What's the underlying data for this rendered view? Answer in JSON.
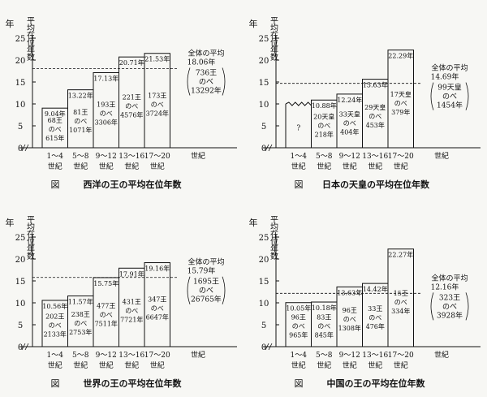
{
  "ylabel": "年",
  "ylabel_title": "平均在位年数",
  "xlabel": "世紀",
  "overall_label": "全体の平均",
  "caption_prefix": "図",
  "chart_data": [
    {
      "type": "bar",
      "title": "西洋の王の平均在位年数",
      "categories": [
        "1～4 世紀",
        "5～8 世紀",
        "9～12 世紀",
        "13～16 世紀",
        "17～20 世紀"
      ],
      "values": [
        9.04,
        13.22,
        17.13,
        20.71,
        21.53
      ],
      "value_labels": [
        "9.04年",
        "13.22年",
        "17.13年",
        "20.71年",
        "21.53年"
      ],
      "inner_top": [
        "68王",
        "81王",
        "193王",
        "221王",
        "173王"
      ],
      "inner_bottom": [
        "615年",
        "1071年",
        "3306年",
        "4576年",
        "3724年"
      ],
      "noinfo": [
        false,
        false,
        false,
        false,
        false
      ],
      "average": 18.06,
      "avg_lines": [
        "全体の平均",
        "18.06年",
        "736王",
        "のべ",
        "13292年"
      ],
      "yticks": [
        0,
        5,
        10,
        15,
        20,
        25
      ],
      "ylim": [
        0,
        25
      ]
    },
    {
      "type": "bar",
      "title": "日本の天皇の平均在位年数",
      "categories": [
        "1～4 世紀",
        "5～8 世紀",
        "9～12 世紀",
        "13～16 世紀",
        "17～20 世紀"
      ],
      "values": [
        10,
        10.88,
        12.24,
        15.63,
        22.29
      ],
      "value_labels": [
        "",
        "10.88年",
        "12.24年",
        "15.63年",
        "22.29年"
      ],
      "inner_top": [
        "?",
        "20天皇",
        "33天皇",
        "29天皇",
        "17天皇"
      ],
      "inner_bottom": [
        "",
        "218年",
        "404年",
        "453年",
        "379年"
      ],
      "noinfo": [
        true,
        false,
        false,
        false,
        false
      ],
      "average": 14.69,
      "avg_lines": [
        "全体の平均",
        "14.69年",
        "99天皇",
        "のべ",
        "1454年"
      ],
      "yticks": [
        0,
        5,
        10,
        15,
        20,
        25
      ],
      "ylim": [
        0,
        25
      ]
    },
    {
      "type": "bar",
      "title": "世界の王の平均在位年数",
      "categories": [
        "1～4 世紀",
        "5～8 世紀",
        "9～12 世紀",
        "13～16 世紀",
        "17～20 世紀"
      ],
      "values": [
        10.56,
        11.57,
        15.75,
        17.91,
        19.16
      ],
      "value_labels": [
        "10.56年",
        "11.57年",
        "15.75年",
        "17.91年",
        "19.16年"
      ],
      "inner_top": [
        "202王",
        "238王",
        "477王",
        "431王",
        "347王"
      ],
      "inner_bottom": [
        "2133年",
        "2753年",
        "7511年",
        "7721年",
        "6647年"
      ],
      "noinfo": [
        false,
        false,
        false,
        false,
        false
      ],
      "average": 15.79,
      "avg_lines": [
        "全体の平均",
        "15.79年",
        "1695王",
        "のべ",
        "26765年"
      ],
      "yticks": [
        0,
        5,
        10,
        15,
        20,
        25
      ],
      "ylim": [
        0,
        25
      ]
    },
    {
      "type": "bar",
      "title": "中国の王の平均在位年数",
      "categories": [
        "1～4 世紀",
        "5～8 世紀",
        "9～12 世紀",
        "13～16 世紀",
        "17～20 世紀"
      ],
      "values": [
        10.05,
        10.18,
        13.63,
        14.42,
        22.27
      ],
      "value_labels": [
        "10.05年",
        "10.18年",
        "13.63年",
        "14.42年",
        "22.27年"
      ],
      "inner_top": [
        "96王",
        "83王",
        "96王",
        "33王",
        "15王"
      ],
      "inner_bottom": [
        "965年",
        "845年",
        "1308年",
        "476年",
        "334年"
      ],
      "noinfo": [
        false,
        false,
        false,
        false,
        false
      ],
      "average": 12.16,
      "avg_lines": [
        "全体の平均",
        "12.16年",
        "323王",
        "のべ",
        "3928年"
      ],
      "yticks": [
        0,
        5,
        10,
        15,
        20,
        25
      ],
      "ylim": [
        0,
        25
      ]
    }
  ]
}
